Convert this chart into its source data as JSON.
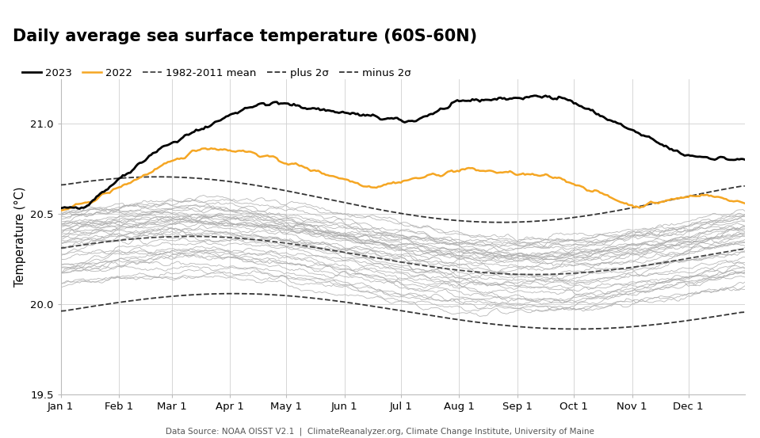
{
  "title": "Daily average sea surface temperature (60S-60N)",
  "ylabel": "Temperature (°C)",
  "source_text": "Data Source: NOAA OISST V2.1  |  ClimateReanalyzer.org, Climate Change Institute, University of Maine",
  "ylim": [
    19.5,
    21.25
  ],
  "yticks": [
    19.5,
    20.0,
    20.5,
    21.0
  ],
  "month_labels": [
    "Jan 1",
    "Feb 1",
    "Mar 1",
    "Apr 1",
    "May 1",
    "Jun 1",
    "Jul 1",
    "Aug 1",
    "Sep 1",
    "Oct 1",
    "Nov 1",
    "Dec 1"
  ],
  "color_2023": "#000000",
  "color_2022": "#f5a623",
  "color_historical": "#aaaaaa",
  "color_mean": "#444444",
  "color_sigma": "#333333",
  "lw_2023": 2.0,
  "lw_2022": 1.8,
  "lw_historical": 0.6,
  "lw_mean": 1.3,
  "lw_sigma": 1.3
}
